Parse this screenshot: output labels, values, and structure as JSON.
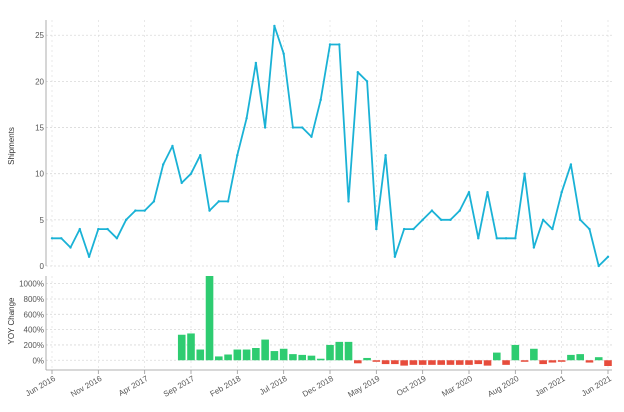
{
  "colors": {
    "line": "#1ab2d6",
    "positive": "#2ecc71",
    "negative": "#e74c3c",
    "grid": "#d9d9d9",
    "axis": "#999999"
  },
  "chart_data": [
    {
      "type": "line",
      "ylabel": "Shipments",
      "ylim": [
        0,
        26
      ],
      "yticks": [
        0,
        5,
        10,
        15,
        20,
        25
      ],
      "grid": true,
      "series": [
        {
          "values": [
            3,
            3,
            2,
            4,
            1,
            4,
            4,
            3,
            5,
            6,
            6,
            7,
            11,
            13,
            9,
            10,
            12,
            6,
            7,
            7,
            12,
            16,
            22,
            15,
            26,
            23,
            15,
            15,
            14,
            18,
            24,
            24,
            7,
            21,
            20,
            4,
            12,
            1,
            4,
            4,
            5,
            6,
            5,
            5,
            6,
            8,
            3,
            8,
            3,
            3,
            3,
            10,
            2,
            5,
            4,
            8,
            11,
            5,
            4,
            0,
            1
          ]
        }
      ]
    },
    {
      "type": "bar",
      "ylabel": "YOY Change",
      "ylim": [
        -75,
        1100
      ],
      "yticks": [
        "0%",
        "200%",
        "400%",
        "600%",
        "800%",
        "1000%"
      ],
      "ytick_values": [
        0,
        200,
        400,
        600,
        800,
        1000
      ],
      "grid": true,
      "values": [
        null,
        null,
        null,
        null,
        null,
        null,
        null,
        null,
        null,
        null,
        null,
        null,
        null,
        null,
        333,
        350,
        140,
        1100,
        50,
        75,
        140,
        140,
        160,
        270,
        120,
        150,
        80,
        70,
        60,
        20,
        200,
        240,
        240,
        -40,
        30,
        -20,
        -50,
        -50,
        -70,
        -60,
        -60,
        -60,
        -60,
        -60,
        -60,
        -60,
        -50,
        -70,
        100,
        -60,
        200,
        -20,
        150,
        -50,
        -30,
        -20,
        70,
        80,
        -30,
        40,
        -75
      ]
    }
  ],
  "xaxis": {
    "tick_labels": [
      "Jun 2016",
      "Nov 2016",
      "Apr 2017",
      "Sep 2017",
      "Feb 2018",
      "Jul 2018",
      "Dec 2018",
      "May 2019",
      "Oct 2019",
      "Mar 2020",
      "Aug 2020",
      "Jan 2021",
      "Jun 2021"
    ],
    "tick_index": [
      0,
      5,
      10,
      15,
      20,
      25,
      30,
      35,
      40,
      45,
      50,
      55,
      60
    ]
  }
}
